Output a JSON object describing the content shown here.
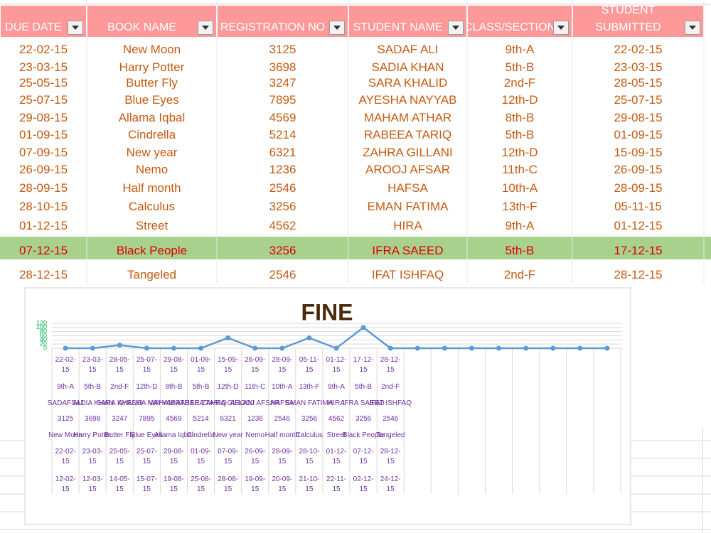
{
  "table": {
    "headers": [
      "DUE DATE",
      "BOOK NAME",
      "REGISTRATION NO",
      "STUDENT NAME",
      "CLASS/SECTION",
      "STUDENT SUBMITTED"
    ],
    "rows": [
      [
        "22-02-15",
        "New Moon",
        "3125",
        "SADAF ALI",
        "9th-A",
        "22-02-15"
      ],
      [
        "23-03-15",
        "Harry Potter",
        "3698",
        "SADIA KHAN",
        "5th-B",
        "23-03-15"
      ],
      [
        "25-05-15",
        "Butter Fly",
        "3247",
        "SARA KHALID",
        "2nd-F",
        "28-05-15"
      ],
      [
        "25-07-15",
        "Blue Eyes",
        "7895",
        "AYESHA NAYYAB",
        "12th-D",
        "25-07-15"
      ],
      [
        "29-08-15",
        "Allama Iqbal",
        "4569",
        "MAHAM ATHAR",
        "8th-B",
        "29-08-15"
      ],
      [
        "01-09-15",
        "Cindrella",
        "5214",
        "RABEEA TARIQ",
        "5th-B",
        "01-09-15"
      ],
      [
        "07-09-15",
        "New year",
        "6321",
        "ZAHRA GILLANI",
        "12th-D",
        "15-09-15"
      ],
      [
        "26-09-15",
        "Nemo",
        "1236",
        "AROOJ AFSAR",
        "11th-C",
        "26-09-15"
      ],
      [
        "28-09-15",
        "Half month",
        "2546",
        "HAFSA",
        "10th-A",
        "28-09-15"
      ],
      [
        "28-10-15",
        "Calculus",
        "3256",
        "EMAN FATIMA",
        "13th-F",
        "05-11-15"
      ],
      [
        "01-12-15",
        "Street",
        "4562",
        "HIRA",
        "9th-A",
        "01-12-15"
      ],
      [
        "07-12-15",
        "Black People",
        "3256",
        "IFRA SAEED",
        "5th-B",
        "17-12-15"
      ],
      [
        "28-12-15",
        "Tangeled",
        "2546",
        "IFAT ISHFAQ",
        "2nd-F",
        "28-12-15"
      ]
    ]
  },
  "chart_data": {
    "type": "line",
    "title": "FINE",
    "categories": [
      [
        "22-02-15",
        "9th-A",
        "SADAF ALI",
        "3125",
        "New Moon",
        "22-02-15",
        "12-02-15"
      ],
      [
        "23-03-15",
        "5th-B",
        "SADIA KHAN",
        "3698",
        "Harry Potter",
        "23-03-15",
        "12-03-15"
      ],
      [
        "28-05-15",
        "2nd-F",
        "SARA KHALID",
        "3247",
        "Butter Fly",
        "25-05-15",
        "14-05-15"
      ],
      [
        "25-07-15",
        "12th-D",
        "AYESHA NAYYAB",
        "7895",
        "Blue Eyes",
        "25-07-15",
        "15-07-15"
      ],
      [
        "29-08-15",
        "8th-B",
        "MAHAM ATHAR",
        "4569",
        "Allama Iqbal",
        "29-08-15",
        "19-08-15"
      ],
      [
        "01-09-15",
        "5th-B",
        "RABEEA TARIQ",
        "5214",
        "Cindrella",
        "01-09-15",
        "25-08-15"
      ],
      [
        "15-09-15",
        "12th-D",
        "ZAHRA GILLANI",
        "6321",
        "New year",
        "07-09-15",
        "28-08-15"
      ],
      [
        "26-09-15",
        "11th-C",
        "AROOJ AFSAR",
        "1236",
        "Nemo",
        "26-09-15",
        "19-09-15"
      ],
      [
        "28-09-15",
        "10th-A",
        "HAFSA",
        "2546",
        "Half month",
        "28-09-15",
        "20-09-15"
      ],
      [
        "05-11-15",
        "13th-F",
        "EMAN FATIMA",
        "3256",
        "Calculus",
        "28-10-15",
        "21-10-15"
      ],
      [
        "01-12-15",
        "9th-A",
        "HIRA",
        "4562",
        "Street",
        "01-12-15",
        "22-11-15"
      ],
      [
        "17-12-15",
        "5th-B",
        "IFRA SAEED",
        "3256",
        "Black People",
        "07-12-15",
        "02-12-15"
      ],
      [
        "28-12-15",
        "2nd-F",
        "IFAT ISHFAQ",
        "2546",
        "Tangeled",
        "28-12-15",
        "24-12-15"
      ],
      null,
      null,
      null,
      null,
      null,
      null,
      null,
      null
    ],
    "series": [
      {
        "color": "#5b9bd5",
        "values": [
          0,
          0,
          15,
          0,
          0,
          0,
          50,
          0,
          0,
          50,
          0,
          100,
          0,
          0,
          0,
          0,
          0,
          0,
          0,
          0,
          0
        ]
      }
    ],
    "ylim": [
      0,
      120
    ],
    "yticks": [
      0,
      20,
      40,
      60,
      80,
      100,
      120
    ],
    "grid": true
  }
}
